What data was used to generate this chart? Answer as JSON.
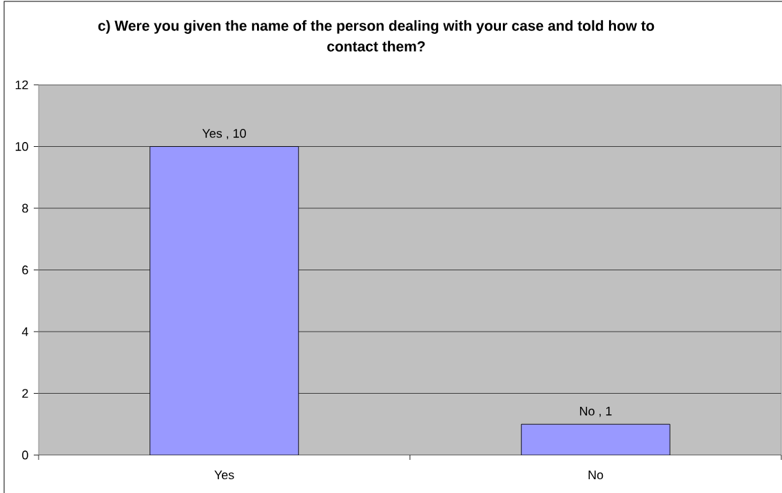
{
  "chart_data": {
    "type": "bar",
    "title": "c) Were you given the name of the person dealing with your case and told how to contact them?",
    "categories": [
      "Yes",
      "No"
    ],
    "values": [
      10,
      1
    ],
    "color": "#9999ff",
    "value_labels": [
      "Yes , 10",
      "No , 1"
    ],
    "ylim": [
      0,
      12
    ],
    "yticks": [
      0,
      2,
      4,
      6,
      8,
      10,
      12
    ],
    "grid": "y"
  }
}
